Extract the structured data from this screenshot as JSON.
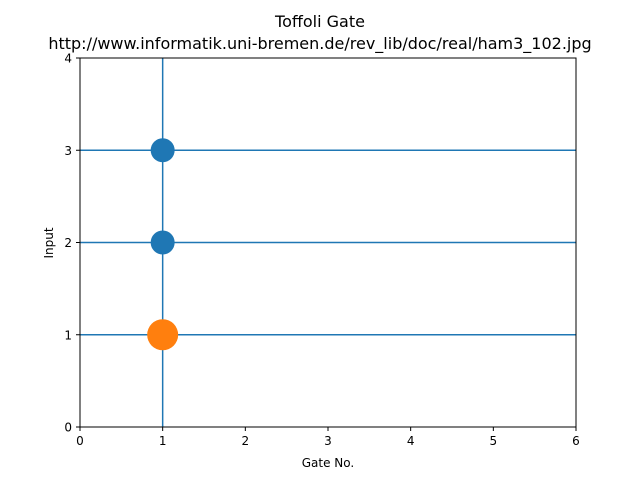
{
  "chart_data": {
    "type": "scatter",
    "title": "Toffoli Gate",
    "subtitle": "http://www.informatik.uni-bremen.de/rev_lib/doc/real/ham3_102.jpg",
    "xlabel": "Gate No.",
    "ylabel": "Input",
    "xlim": [
      0,
      6
    ],
    "ylim": [
      0,
      4
    ],
    "xticks": [
      0,
      1,
      2,
      3,
      4,
      5,
      6
    ],
    "yticks": [
      0,
      1,
      2,
      3,
      4
    ],
    "grid": false,
    "horizontal_lines": [
      1,
      2,
      3
    ],
    "vertical_lines": [
      1
    ],
    "line_color": "#1f77b4",
    "series": [
      {
        "points": [
          {
            "x": 1,
            "y": 3
          },
          {
            "x": 1,
            "y": 2
          }
        ],
        "color": "#1f77b4",
        "marker_size": "medium"
      },
      {
        "points": [
          {
            "x": 1,
            "y": 1
          }
        ],
        "color": "#ff7f0e",
        "marker_size": "large"
      }
    ]
  }
}
